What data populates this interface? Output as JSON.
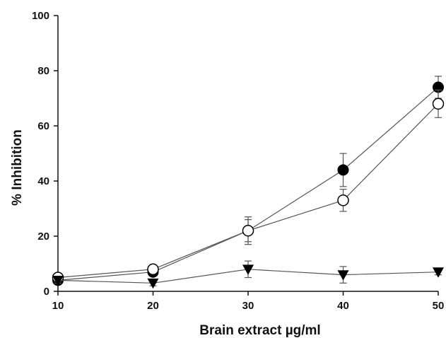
{
  "chart_data": {
    "type": "line",
    "title": "",
    "xlabel": "Brain extract µg/ml",
    "ylabel": "% Inhibition",
    "x": [
      10,
      20,
      30,
      40,
      50
    ],
    "xlim": [
      10,
      50
    ],
    "ylim": [
      0,
      100
    ],
    "xticks": [
      "10",
      "20",
      "30",
      "40",
      "50"
    ],
    "yticks": [
      "0",
      "20",
      "40",
      "60",
      "80",
      "100"
    ],
    "grid": false,
    "legend": "none",
    "series": [
      {
        "marker": "filled-circle",
        "color": "#000000",
        "values": [
          4,
          7,
          22,
          44,
          74
        ],
        "errors": [
          1,
          1,
          4,
          6,
          4
        ]
      },
      {
        "marker": "open-circle",
        "color": "#000000",
        "values": [
          5,
          8,
          22,
          33,
          68
        ],
        "errors": [
          1,
          1,
          5,
          4,
          5
        ]
      },
      {
        "marker": "filled-triangle-down",
        "color": "#000000",
        "values": [
          4,
          3,
          8,
          6,
          7
        ],
        "errors": [
          1,
          1,
          3,
          3,
          1
        ]
      }
    ]
  }
}
